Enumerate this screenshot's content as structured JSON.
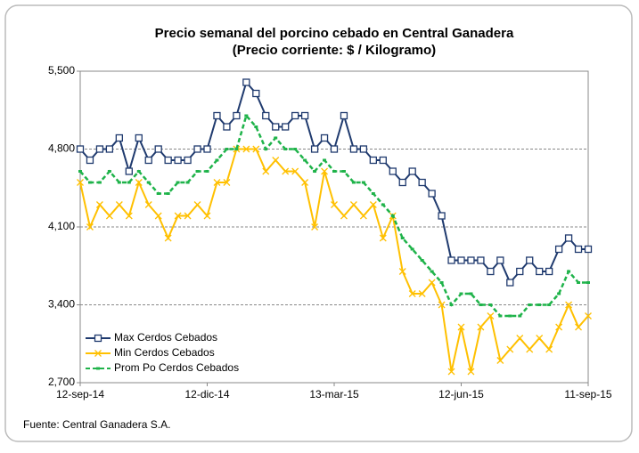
{
  "chart_data": {
    "type": "line",
    "title": "Precio semanal del porcino cebado en Central Ganadera",
    "subtitle": "(Precio corriente: $ / Kilogramo)",
    "source": "Fuente: Central Ganadera S.A.",
    "categories": [
      "12-sep-14",
      null,
      null,
      null,
      null,
      null,
      null,
      null,
      null,
      null,
      null,
      null,
      null,
      "12-dic-14",
      null,
      null,
      null,
      null,
      null,
      null,
      null,
      null,
      null,
      null,
      null,
      null,
      "13-mar-15",
      null,
      null,
      null,
      null,
      null,
      null,
      null,
      null,
      null,
      null,
      null,
      null,
      "12-jun-15",
      null,
      null,
      null,
      null,
      null,
      null,
      null,
      null,
      null,
      null,
      null,
      null,
      "11-sep-15"
    ],
    "series": [
      {
        "name": "Max Cerdos Cebados",
        "color": "#1f3a6e",
        "marker": "square",
        "values": [
          4800,
          4700,
          4800,
          4800,
          4900,
          4600,
          4900,
          4700,
          4800,
          4700,
          4700,
          4700,
          4800,
          4800,
          5100,
          5000,
          5100,
          5400,
          5300,
          5100,
          5000,
          5000,
          5100,
          5100,
          4800,
          4900,
          4800,
          5100,
          4800,
          4800,
          4700,
          4700,
          4600,
          4500,
          4600,
          4500,
          4400,
          4200,
          3800,
          3800,
          3800,
          3800,
          3700,
          3800,
          3600,
          3700,
          3800,
          3700,
          3700,
          3900,
          4000,
          3900,
          3900
        ]
      },
      {
        "name": "Min Cerdos Cebados",
        "color": "#ffc000",
        "marker": "x",
        "values": [
          4500,
          4100,
          4300,
          4200,
          4300,
          4200,
          4500,
          4300,
          4200,
          4000,
          4200,
          4200,
          4300,
          4200,
          4500,
          4500,
          4800,
          4800,
          4800,
          4600,
          4700,
          4600,
          4600,
          4500,
          4100,
          4600,
          4300,
          4200,
          4300,
          4200,
          4300,
          4000,
          4200,
          3700,
          3500,
          3500,
          3600,
          3400,
          2800,
          3200,
          2800,
          3200,
          3300,
          2900,
          3000,
          3100,
          3000,
          3100,
          3000,
          3200,
          3400,
          3200,
          3300
        ]
      },
      {
        "name": "Prom Po Cerdos Cebados",
        "color": "#1fb34a",
        "marker": "dash",
        "values": [
          4600,
          4500,
          4500,
          4600,
          4500,
          4500,
          4600,
          4500,
          4400,
          4400,
          4500,
          4500,
          4600,
          4600,
          4700,
          4800,
          4800,
          5100,
          5000,
          4800,
          4900,
          4800,
          4800,
          4700,
          4600,
          4700,
          4600,
          4600,
          4500,
          4500,
          4400,
          4300,
          4200,
          4000,
          3900,
          3800,
          3700,
          3600,
          3400,
          3500,
          3500,
          3400,
          3400,
          3300,
          3300,
          3300,
          3400,
          3400,
          3400,
          3500,
          3700,
          3600,
          3600
        ]
      }
    ],
    "ylim": [
      2700,
      5500
    ],
    "yticks": [
      {
        "value": 2700,
        "label": "2,700"
      },
      {
        "value": 3400,
        "label": "3,400"
      },
      {
        "value": 4100,
        "label": "4,100"
      },
      {
        "value": 4800,
        "label": "4,800"
      },
      {
        "value": 5500,
        "label": "5,500"
      }
    ],
    "grid": true,
    "legend": "lower left"
  }
}
